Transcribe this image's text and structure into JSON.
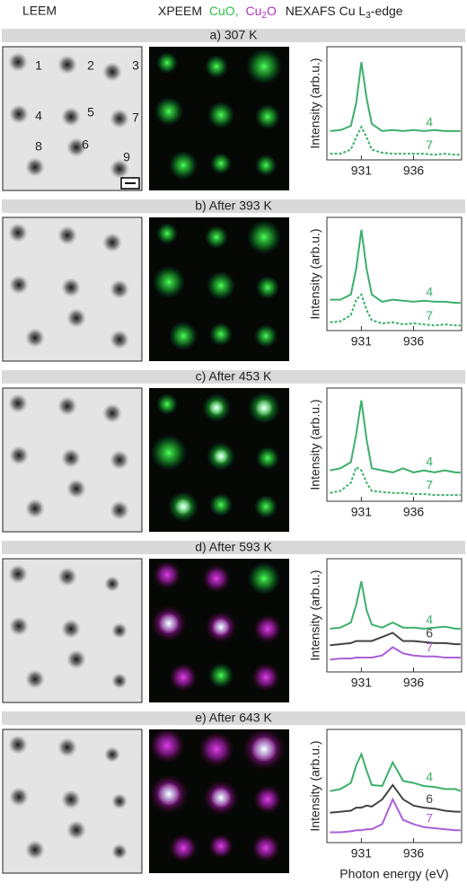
{
  "header": {
    "leem": "LEEM",
    "xpeem": "XPEEM",
    "cuo": "CuO,",
    "cu2o": {
      "base": "Cu",
      "sub": "2",
      "rest": "O"
    },
    "nexafs": {
      "base": "NEXAFS Cu L",
      "sub": "3",
      "rest": "-edge"
    }
  },
  "leem_labels": [
    "1",
    "2",
    "3",
    "4",
    "5",
    "6",
    "7",
    "8",
    "9"
  ],
  "chart_data": [
    {
      "type": "line",
      "title": "a) 307 K",
      "ylabel": "Intensity (arb.u.)",
      "x": [
        928,
        929,
        930,
        930.5,
        931,
        931.5,
        932,
        933,
        934,
        935,
        936,
        937,
        938,
        939,
        940,
        940.5
      ],
      "xlim": [
        927.7,
        940.6
      ],
      "xticks": [
        931,
        936
      ],
      "ylim": [
        0,
        11
      ],
      "series": [
        {
          "name": "4",
          "color": "#3daf6b",
          "linestyle": "solid",
          "values": [
            2.8,
            2.9,
            3.3,
            5.5,
            9.5,
            6,
            3.5,
            2.8,
            2.9,
            2.8,
            2.9,
            2.8,
            2.9,
            2.8,
            2.8,
            2.8
          ]
        },
        {
          "name": "7",
          "color": "#3daf6b",
          "linestyle": "dotted",
          "values": [
            0.6,
            0.6,
            1,
            2.2,
            3.2,
            2.2,
            1,
            0.7,
            0.6,
            0.6,
            0.6,
            0.6,
            0.5,
            0.6,
            0.5,
            0.5
          ]
        }
      ]
    },
    {
      "type": "line",
      "title": "b) After 393 K",
      "ylabel": "Intensity (arb.u.)",
      "x": [
        928,
        929,
        930,
        930.5,
        931,
        931.5,
        932,
        933,
        934,
        935,
        936,
        937,
        938,
        939,
        940,
        940.5
      ],
      "xlim": [
        927.7,
        940.6
      ],
      "xticks": [
        931,
        936
      ],
      "ylim": [
        0,
        11
      ],
      "series": [
        {
          "name": "4",
          "color": "#3daf6b",
          "linestyle": "solid",
          "values": [
            3,
            3,
            3.5,
            6,
            9.8,
            6,
            3.5,
            2.8,
            3,
            2.9,
            2.8,
            2.9,
            2.8,
            2.8,
            2.7,
            2.7
          ]
        },
        {
          "name": "7",
          "color": "#3daf6b",
          "linestyle": "dotted",
          "values": [
            0.8,
            0.9,
            1.5,
            3,
            3.5,
            2,
            1,
            0.7,
            0.8,
            0.6,
            0.7,
            0.6,
            0.5,
            0.6,
            0.5,
            0.5
          ]
        }
      ]
    },
    {
      "type": "line",
      "title": "c) After 453 K",
      "ylabel": "Intensity (arb.u.)",
      "x": [
        928,
        929,
        930,
        930.5,
        931,
        931.5,
        932,
        933,
        934,
        935,
        936,
        937,
        938,
        939,
        940,
        940.5
      ],
      "xlim": [
        927.7,
        940.6
      ],
      "xticks": [
        931,
        936
      ],
      "ylim": [
        0,
        11
      ],
      "series": [
        {
          "name": "4",
          "color": "#3daf6b",
          "linestyle": "solid",
          "values": [
            3,
            3.2,
            3.8,
            6.5,
            9.8,
            6,
            3.2,
            3,
            2.8,
            3.2,
            2.8,
            3,
            2.8,
            3,
            2.8,
            2.8
          ]
        },
        {
          "name": "7",
          "color": "#3daf6b",
          "linestyle": "dotted",
          "values": [
            0.8,
            1,
            1.8,
            3.3,
            3,
            1.8,
            1,
            0.9,
            0.8,
            0.8,
            0.7,
            0.7,
            0.6,
            0.6,
            0.6,
            0.6
          ]
        }
      ]
    },
    {
      "type": "line",
      "title": "d) After 593 K",
      "ylabel": "Intensity (arb.u.)",
      "x": [
        928,
        929,
        930,
        930.5,
        931,
        931.5,
        932,
        933,
        934,
        935,
        936,
        937,
        938,
        939,
        940,
        940.5
      ],
      "xlim": [
        927.7,
        940.6
      ],
      "xticks": [
        931,
        936
      ],
      "ylim": [
        0,
        11
      ],
      "series": [
        {
          "name": "4",
          "color": "#3daf6b",
          "linestyle": "solid",
          "values": [
            4.2,
            4.3,
            4.8,
            6.5,
            8.8,
            6,
            4.6,
            4.3,
            4.8,
            4.3,
            4.3,
            4.2,
            4.3,
            4.4,
            4.2,
            4.2
          ]
        },
        {
          "name": "6",
          "color": "#444444",
          "linestyle": "solid",
          "values": [
            2.6,
            2.7,
            2.8,
            3,
            3,
            3,
            3,
            3.4,
            3.8,
            3,
            3,
            2.9,
            2.8,
            2.8,
            2.7,
            2.7
          ]
        },
        {
          "name": "7",
          "color": "#a95fd8",
          "linestyle": "solid",
          "values": [
            1.2,
            1.3,
            1.3,
            1.4,
            1.4,
            1.4,
            1.4,
            1.6,
            2.4,
            1.8,
            1.6,
            1.5,
            1.5,
            1.4,
            1.4,
            1.4
          ]
        }
      ]
    },
    {
      "type": "line",
      "title": "e) After 643 K",
      "ylabel": "Intensity (arb.u.)",
      "xlabel": "Photon energy (eV)",
      "x": [
        928,
        929,
        930,
        930.5,
        931,
        931.5,
        932,
        933,
        934,
        935,
        936,
        937,
        938,
        939,
        940,
        940.5
      ],
      "xlim": [
        927.7,
        940.6
      ],
      "xticks": [
        931,
        936
      ],
      "ylim": [
        0,
        11
      ],
      "series": [
        {
          "name": "4",
          "color": "#3daf6b",
          "linestyle": "solid",
          "values": [
            5,
            5.2,
            5.8,
            7.5,
            8.6,
            7,
            5.6,
            5.5,
            7.8,
            6,
            5.8,
            5.5,
            5.4,
            5.2,
            5.2,
            5
          ]
        },
        {
          "name": "6",
          "color": "#444444",
          "linestyle": "solid",
          "values": [
            2.9,
            3,
            3.1,
            3.4,
            3.4,
            3.6,
            3.5,
            4.2,
            5.6,
            4.2,
            3.6,
            3.4,
            3.3,
            3.1,
            3,
            3
          ]
        },
        {
          "name": "7",
          "color": "#a95fd8",
          "linestyle": "solid",
          "values": [
            1,
            1,
            1.1,
            1.2,
            1.2,
            1.3,
            1.3,
            1.8,
            4.2,
            2.2,
            1.8,
            1.5,
            1.4,
            1.3,
            1.2,
            1.2
          ]
        }
      ]
    }
  ]
}
